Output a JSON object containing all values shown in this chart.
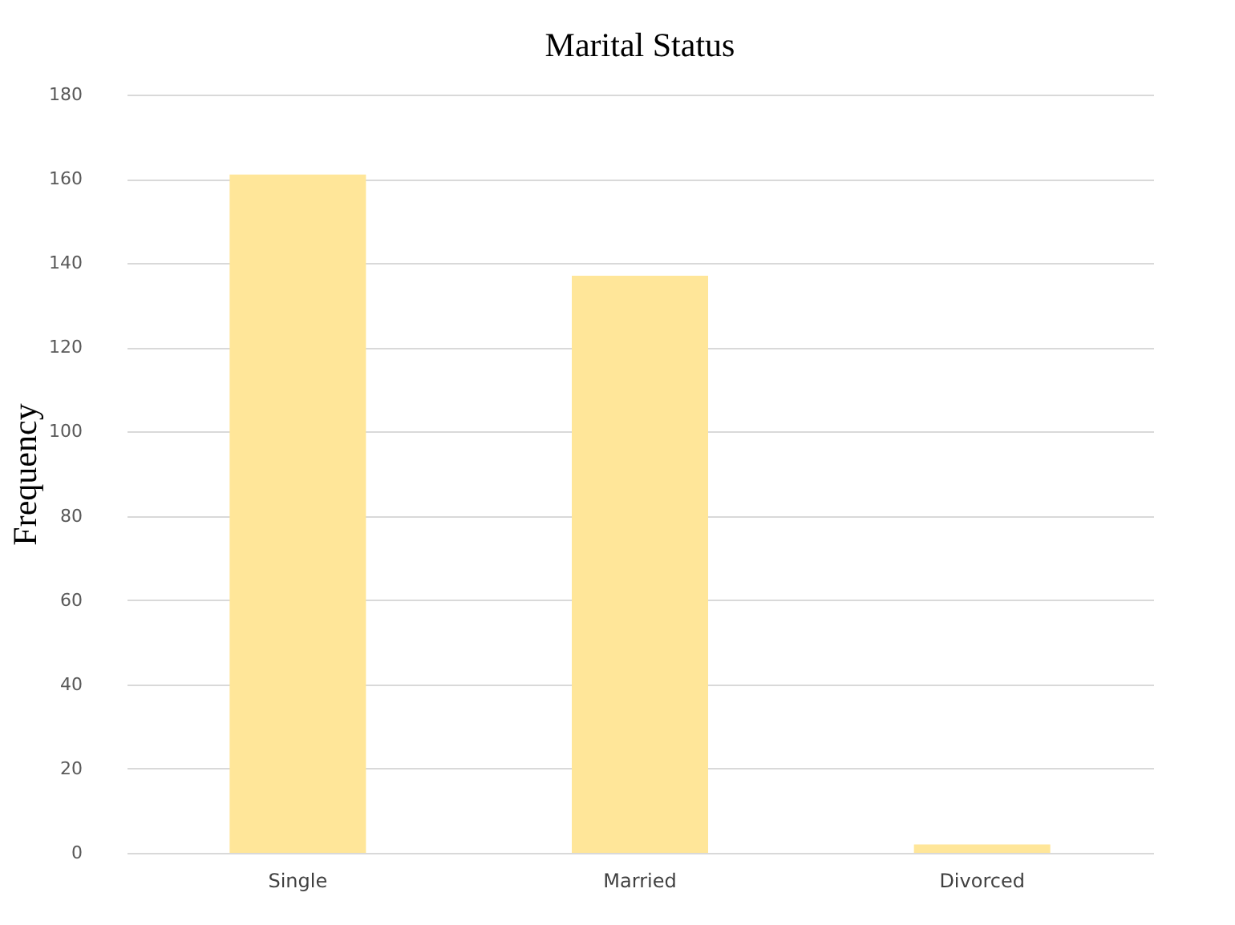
{
  "chart_data": {
    "type": "bar",
    "title": "Marital Status",
    "ylabel": "Frequency",
    "categories": [
      "Single",
      "Married",
      "Divorced"
    ],
    "values": [
      161,
      137,
      2
    ],
    "color": "#ffe699",
    "ylim": [
      0,
      180
    ],
    "yticks": [
      0,
      20,
      40,
      60,
      80,
      100,
      120,
      140,
      160,
      180
    ],
    "grid": "y"
  }
}
